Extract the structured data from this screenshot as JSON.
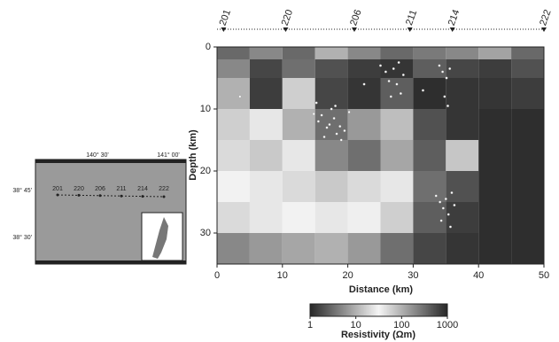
{
  "chart_data": {
    "type": "heatmap",
    "xlabel": "Distance (km)",
    "ylabel": "Depth (km)",
    "xlim": [
      0,
      50
    ],
    "ylim": [
      0,
      35
    ],
    "y_inverted": true,
    "xticks": [
      0,
      10,
      20,
      30,
      40,
      50
    ],
    "yticks": [
      0,
      10,
      20,
      30
    ],
    "x_edges": [
      0,
      5,
      10,
      15,
      20,
      25,
      30,
      35,
      40,
      45,
      50
    ],
    "y_edges": [
      0,
      2,
      5,
      10,
      15,
      20,
      25,
      30,
      35
    ],
    "z": [
      [
        3,
        5,
        3,
        10,
        5,
        3,
        4,
        5,
        8,
        3
      ],
      [
        200,
        600,
        300,
        500,
        700,
        800,
        400,
        600,
        700,
        500
      ],
      [
        100,
        700,
        60,
        600,
        800,
        400,
        900,
        800,
        800,
        700
      ],
      [
        60,
        40,
        100,
        300,
        150,
        80,
        500,
        800,
        900,
        900
      ],
      [
        20,
        15,
        40,
        200,
        300,
        120,
        400,
        70,
        900,
        900
      ],
      [
        30,
        25,
        20,
        15,
        20,
        40,
        300,
        500,
        900,
        900
      ],
      [
        50,
        40,
        30,
        25,
        35,
        60,
        400,
        700,
        900,
        900
      ],
      [
        200,
        150,
        120,
        100,
        150,
        300,
        600,
        800,
        900,
        900
      ]
    ],
    "colorbar": {
      "label": "Resistivity (Ωm)",
      "lim": [
        1,
        1000
      ],
      "log": true,
      "ticks": [
        1,
        10,
        100,
        1000
      ]
    },
    "stations": {
      "names": [
        "201",
        "220",
        "206",
        "211",
        "214",
        "222"
      ],
      "x": [
        1,
        10.5,
        21,
        29.5,
        36,
        50
      ]
    },
    "earthquakes": {
      "x": [
        15.5,
        16,
        16.8,
        17.2,
        17.9,
        18.3,
        18.8,
        19.5,
        20.2,
        16.4,
        17.5,
        18.1,
        19,
        14.8,
        15.2,
        25,
        25.8,
        26.3,
        27,
        27.5,
        28.1,
        26.6,
        27.8,
        28.5,
        34,
        34.5,
        35.1,
        35.6,
        34.8,
        35.3,
        33.5,
        34.1,
        34.6,
        35,
        35.4,
        35.9,
        36.3,
        34.3,
        35.7,
        3.5,
        22.5,
        31.5
      ],
      "y": [
        12,
        11,
        13,
        12.5,
        11.5,
        14,
        12.8,
        13.5,
        10.5,
        14.5,
        10,
        9.5,
        15,
        10.8,
        9,
        3,
        4,
        5.5,
        3.5,
        6,
        7.5,
        8,
        2.5,
        4.5,
        3,
        4,
        5,
        3.5,
        8,
        9.5,
        24,
        25,
        26,
        24.5,
        27,
        23.5,
        25.5,
        28,
        29,
        8,
        6,
        7
      ]
    },
    "map": {
      "lon_labels": [
        "140° 30'",
        "141° 00'"
      ],
      "lat_labels": [
        "38° 45'",
        "38° 30'"
      ],
      "stations": [
        "201",
        "220",
        "206",
        "211",
        "214",
        "222"
      ]
    }
  }
}
